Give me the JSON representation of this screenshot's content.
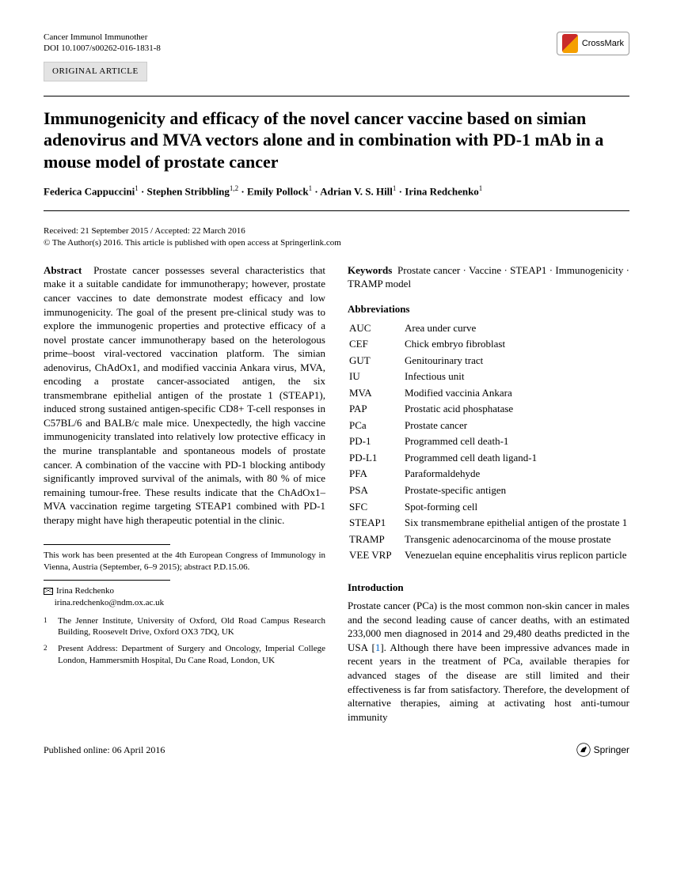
{
  "header": {
    "journal": "Cancer Immunol Immunother",
    "doi": "DOI 10.1007/s00262-016-1831-8",
    "crossmark": "CrossMark"
  },
  "article_type": "ORIGINAL ARTICLE",
  "title": "Immunogenicity and efficacy of the novel cancer vaccine based on simian adenovirus and MVA vectors alone and in combination with PD-1 mAb in a mouse model of prostate cancer",
  "authors_html": "Federica Cappuccini<sup>1</sup> · Stephen Stribbling<sup>1,2</sup> · Emily Pollock<sup>1</sup> · Adrian V. S. Hill<sup>1</sup> · Irina Redchenko<sup>1</sup>",
  "dates": "Received: 21 September 2015 / Accepted: 22 March 2016",
  "copyright": "© The Author(s) 2016. This article is published with open access at Springerlink.com",
  "abstract_label": "Abstract",
  "abstract": "Prostate cancer possesses several characteristics that make it a suitable candidate for immunotherapy; however, prostate cancer vaccines to date demonstrate modest efficacy and low immunogenicity. The goal of the present pre-clinical study was to explore the immunogenic properties and protective efficacy of a novel prostate cancer immunotherapy based on the heterologous prime–boost viral-vectored vaccination platform. The simian adenovirus, ChAdOx1, and modified vaccinia Ankara virus, MVA, encoding a prostate cancer-associated antigen, the six transmembrane epithelial antigen of the prostate 1 (STEAP1), induced strong sustained antigen-specific CD8+ T-cell responses in C57BL/6 and BALB/c male mice. Unexpectedly, the high vaccine immunogenicity translated into relatively low protective efficacy in the murine transplantable and spontaneous models of prostate cancer. A combination of the vaccine with PD-1 blocking antibody significantly improved survival of the animals, with 80 % of mice remaining tumour-free. These results indicate that the ChAdOx1–MVA vaccination regime targeting STEAP1 combined with PD-1 therapy might have high therapeutic potential in the clinic.",
  "keywords_label": "Keywords",
  "keywords": "Prostate cancer · Vaccine · STEAP1 · Immunogenicity · TRAMP model",
  "abbrev_heading": "Abbreviations",
  "abbreviations": [
    {
      "k": "AUC",
      "v": "Area under curve"
    },
    {
      "k": "CEF",
      "v": "Chick embryo fibroblast"
    },
    {
      "k": "GUT",
      "v": "Genitourinary tract"
    },
    {
      "k": "IU",
      "v": "Infectious unit"
    },
    {
      "k": "MVA",
      "v": "Modified vaccinia Ankara"
    },
    {
      "k": "PAP",
      "v": "Prostatic acid phosphatase"
    },
    {
      "k": "PCa",
      "v": "Prostate cancer"
    },
    {
      "k": "PD-1",
      "v": "Programmed cell death-1"
    },
    {
      "k": "PD-L1",
      "v": "Programmed cell death ligand-1"
    },
    {
      "k": "PFA",
      "v": "Paraformaldehyde"
    },
    {
      "k": "PSA",
      "v": "Prostate-specific antigen"
    },
    {
      "k": "SFC",
      "v": "Spot-forming cell"
    },
    {
      "k": "STEAP1",
      "v": "Six transmembrane epithelial antigen of the prostate 1"
    },
    {
      "k": "TRAMP",
      "v": "Transgenic adenocarcinoma of the mouse prostate"
    },
    {
      "k": "VEE VRP",
      "v": "Venezuelan equine encephalitis virus replicon particle"
    }
  ],
  "intro_heading": "Introduction",
  "intro_text_pre": "Prostate cancer (PCa) is the most common non-skin cancer in males and the second leading cause of cancer deaths, with an estimated 233,000 men diagnosed in 2014 and 29,480 deaths predicted in the USA [",
  "intro_ref": "1",
  "intro_text_post": "]. Although there have been impressive advances made in recent years in the treatment of PCa, available therapies for advanced stages of the disease are still limited and their effectiveness is far from satisfactory. Therefore, the development of alternative therapies, aiming at activating host anti-tumour immunity",
  "footnotes": {
    "presentation": "This work has been presented at the 4th European Congress of Immunology in Vienna, Austria (September, 6–9 2015); abstract P.D.15.06.",
    "corr_name": "Irina Redchenko",
    "corr_email": "irina.redchenko@ndm.ox.ac.uk",
    "affil1": "The Jenner Institute, University of Oxford, Old Road Campus Research Building, Roosevelt Drive, Oxford OX3 7DQ, UK",
    "affil2": "Present Address: Department of Surgery and Oncology, Imperial College London, Hammersmith Hospital, Du Cane Road, London, UK"
  },
  "footer": {
    "published": "Published online: 06 April 2016",
    "publisher": "Springer"
  }
}
